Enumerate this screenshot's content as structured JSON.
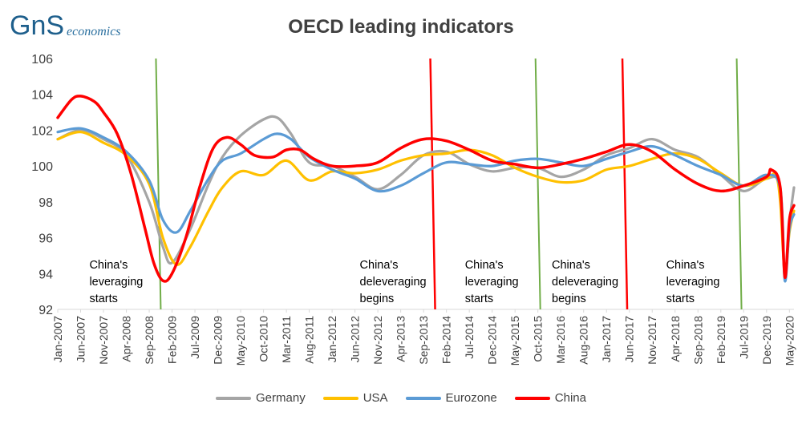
{
  "brand": {
    "logo_letters": "GnS",
    "logo_word": "economics"
  },
  "colors": {
    "Germany": "#a5a5a5",
    "USA": "#ffc000",
    "Eurozone": "#5b9bd5",
    "China": "#ff0000",
    "leveraging_line": "#70ad47",
    "deleveraging_line": "#ff0000"
  },
  "chart_data": {
    "type": "line",
    "title": "OECD leading indicators",
    "xlabel": "",
    "ylabel": "",
    "ylim": [
      92,
      106
    ],
    "yticks": [
      92,
      94,
      96,
      98,
      100,
      102,
      104,
      106
    ],
    "x_start": "Jan-2007",
    "x_end": "Jun-2020",
    "xtick_labels": [
      "Jan-2007",
      "Jun-2007",
      "Nov-2007",
      "Apr-2008",
      "Sep-2008",
      "Feb-2009",
      "Jul-2009",
      "Dec-2009",
      "May-2010",
      "Oct-2010",
      "Mar-2011",
      "Aug-2011",
      "Jan-2012",
      "Jun-2012",
      "Nov-2012",
      "Apr-2013",
      "Sep-2013",
      "Feb-2014",
      "Jul-2014",
      "Dec-2014",
      "May-2015",
      "Oct-2015",
      "Mar-2016",
      "Aug-2016",
      "Jan-2017",
      "Jun-2017",
      "Nov-2017",
      "Apr-2018",
      "Sep-2018",
      "Feb-2019",
      "Jul-2019",
      "Dec-2019",
      "May-2020"
    ],
    "legend": {
      "position": "bottom"
    },
    "grid": false,
    "series": [
      {
        "name": "Germany",
        "points": [
          [
            "2007-01",
            101.5
          ],
          [
            "2007-06",
            102.0
          ],
          [
            "2007-11",
            101.5
          ],
          [
            "2008-04",
            100.6
          ],
          [
            "2008-09",
            98.0
          ],
          [
            "2008-12",
            95.5
          ],
          [
            "2009-02",
            94.6
          ],
          [
            "2009-06",
            96.5
          ],
          [
            "2009-10",
            99.0
          ],
          [
            "2010-01",
            100.5
          ],
          [
            "2010-05",
            101.7
          ],
          [
            "2010-10",
            102.6
          ],
          [
            "2011-01",
            102.7
          ],
          [
            "2011-04",
            101.8
          ],
          [
            "2011-08",
            100.2
          ],
          [
            "2012-01",
            100.0
          ],
          [
            "2012-06",
            99.4
          ],
          [
            "2012-11",
            98.7
          ],
          [
            "2013-04",
            99.5
          ],
          [
            "2013-09",
            100.6
          ],
          [
            "2014-02",
            100.8
          ],
          [
            "2014-07",
            100.1
          ],
          [
            "2014-12",
            99.7
          ],
          [
            "2015-05",
            99.9
          ],
          [
            "2015-10",
            99.9
          ],
          [
            "2016-03",
            99.4
          ],
          [
            "2016-08",
            99.8
          ],
          [
            "2017-01",
            100.6
          ],
          [
            "2017-06",
            101.0
          ],
          [
            "2017-11",
            101.5
          ],
          [
            "2018-04",
            100.9
          ],
          [
            "2018-09",
            100.5
          ],
          [
            "2019-02",
            99.5
          ],
          [
            "2019-07",
            98.6
          ],
          [
            "2019-12",
            99.3
          ],
          [
            "2020-03",
            98.8
          ],
          [
            "2020-04",
            93.8
          ],
          [
            "2020-05",
            96.8
          ],
          [
            "2020-06",
            98.8
          ]
        ]
      },
      {
        "name": "USA",
        "points": [
          [
            "2007-01",
            101.5
          ],
          [
            "2007-06",
            101.9
          ],
          [
            "2007-11",
            101.3
          ],
          [
            "2008-04",
            100.6
          ],
          [
            "2008-09",
            99.0
          ],
          [
            "2008-12",
            96.0
          ],
          [
            "2009-03",
            94.5
          ],
          [
            "2009-06",
            95.5
          ],
          [
            "2009-10",
            97.5
          ],
          [
            "2010-01",
            98.8
          ],
          [
            "2010-05",
            99.7
          ],
          [
            "2010-10",
            99.5
          ],
          [
            "2011-03",
            100.3
          ],
          [
            "2011-08",
            99.2
          ],
          [
            "2012-01",
            99.7
          ],
          [
            "2012-06",
            99.6
          ],
          [
            "2012-11",
            99.8
          ],
          [
            "2013-04",
            100.3
          ],
          [
            "2013-09",
            100.6
          ],
          [
            "2014-02",
            100.7
          ],
          [
            "2014-07",
            100.9
          ],
          [
            "2014-12",
            100.6
          ],
          [
            "2015-05",
            99.9
          ],
          [
            "2015-10",
            99.4
          ],
          [
            "2016-03",
            99.1
          ],
          [
            "2016-08",
            99.2
          ],
          [
            "2017-01",
            99.8
          ],
          [
            "2017-06",
            100.0
          ],
          [
            "2017-11",
            100.4
          ],
          [
            "2018-04",
            100.7
          ],
          [
            "2018-09",
            100.4
          ],
          [
            "2019-02",
            99.6
          ],
          [
            "2019-07",
            98.9
          ],
          [
            "2019-12",
            99.3
          ],
          [
            "2020-02",
            99.5
          ],
          [
            "2020-03",
            98.0
          ],
          [
            "2020-04",
            94.0
          ],
          [
            "2020-05",
            96.3
          ],
          [
            "2020-06",
            97.5
          ]
        ]
      },
      {
        "name": "Eurozone",
        "points": [
          [
            "2007-01",
            101.9
          ],
          [
            "2007-06",
            102.1
          ],
          [
            "2007-11",
            101.6
          ],
          [
            "2008-04",
            100.8
          ],
          [
            "2008-09",
            99.2
          ],
          [
            "2008-12",
            97.0
          ],
          [
            "2009-03",
            96.3
          ],
          [
            "2009-06",
            97.5
          ],
          [
            "2009-10",
            99.3
          ],
          [
            "2010-01",
            100.3
          ],
          [
            "2010-05",
            100.7
          ],
          [
            "2010-10",
            101.5
          ],
          [
            "2011-01",
            101.8
          ],
          [
            "2011-04",
            101.5
          ],
          [
            "2011-08",
            100.5
          ],
          [
            "2012-01",
            99.8
          ],
          [
            "2012-06",
            99.3
          ],
          [
            "2012-11",
            98.6
          ],
          [
            "2013-04",
            98.9
          ],
          [
            "2013-09",
            99.6
          ],
          [
            "2014-02",
            100.2
          ],
          [
            "2014-07",
            100.1
          ],
          [
            "2014-12",
            100.0
          ],
          [
            "2015-05",
            100.3
          ],
          [
            "2015-10",
            100.4
          ],
          [
            "2016-03",
            100.2
          ],
          [
            "2016-08",
            100.0
          ],
          [
            "2017-01",
            100.4
          ],
          [
            "2017-06",
            100.8
          ],
          [
            "2017-11",
            101.1
          ],
          [
            "2018-04",
            100.6
          ],
          [
            "2018-09",
            100.0
          ],
          [
            "2019-02",
            99.5
          ],
          [
            "2019-07",
            98.9
          ],
          [
            "2019-12",
            99.5
          ],
          [
            "2020-03",
            98.7
          ],
          [
            "2020-04",
            93.6
          ],
          [
            "2020-05",
            96.5
          ],
          [
            "2020-06",
            97.3
          ]
        ]
      },
      {
        "name": "China",
        "points": [
          [
            "2007-01",
            102.7
          ],
          [
            "2007-04",
            103.7
          ],
          [
            "2007-06",
            103.9
          ],
          [
            "2007-09",
            103.6
          ],
          [
            "2007-11",
            103.0
          ],
          [
            "2008-02",
            101.8
          ],
          [
            "2008-05",
            99.6
          ],
          [
            "2008-08",
            96.6
          ],
          [
            "2008-10",
            94.6
          ],
          [
            "2008-12",
            93.6
          ],
          [
            "2009-02",
            94.0
          ],
          [
            "2009-05",
            96.0
          ],
          [
            "2009-08",
            98.8
          ],
          [
            "2009-11",
            101.0
          ],
          [
            "2010-02",
            101.6
          ],
          [
            "2010-05",
            101.2
          ],
          [
            "2010-08",
            100.6
          ],
          [
            "2010-12",
            100.5
          ],
          [
            "2011-03",
            100.9
          ],
          [
            "2011-06",
            100.9
          ],
          [
            "2011-09",
            100.4
          ],
          [
            "2012-01",
            100.0
          ],
          [
            "2012-06",
            100.0
          ],
          [
            "2012-11",
            100.2
          ],
          [
            "2013-04",
            101.0
          ],
          [
            "2013-09",
            101.5
          ],
          [
            "2014-02",
            101.4
          ],
          [
            "2014-07",
            100.9
          ],
          [
            "2014-12",
            100.3
          ],
          [
            "2015-05",
            100.1
          ],
          [
            "2015-10",
            99.9
          ],
          [
            "2016-03",
            100.1
          ],
          [
            "2016-08",
            100.4
          ],
          [
            "2017-01",
            100.8
          ],
          [
            "2017-06",
            101.2
          ],
          [
            "2017-11",
            100.8
          ],
          [
            "2018-04",
            99.8
          ],
          [
            "2018-09",
            99.0
          ],
          [
            "2019-02",
            98.6
          ],
          [
            "2019-07",
            98.9
          ],
          [
            "2019-12",
            99.4
          ],
          [
            "2020-01",
            99.8
          ],
          [
            "2020-03",
            98.8
          ],
          [
            "2020-04",
            93.8
          ],
          [
            "2020-05",
            97.0
          ],
          [
            "2020-06",
            97.8
          ]
        ]
      }
    ],
    "vertical_markers": [
      {
        "date": "2008-11",
        "type": "leveraging",
        "label_lines": [
          "China's",
          "leveraging",
          "starts"
        ]
      },
      {
        "date": "2013-11",
        "type": "deleveraging",
        "label_lines": [
          "China's",
          "deleveraging",
          "begins"
        ]
      },
      {
        "date": "2015-10",
        "type": "leveraging",
        "label_lines": [
          "China's",
          "leveraging",
          "starts"
        ]
      },
      {
        "date": "2017-05",
        "type": "deleveraging",
        "label_lines": [
          "China's",
          "deleveraging",
          "begins"
        ]
      },
      {
        "date": "2019-06",
        "type": "leveraging",
        "label_lines": [
          "China's",
          "leveraging",
          "starts"
        ]
      }
    ]
  }
}
